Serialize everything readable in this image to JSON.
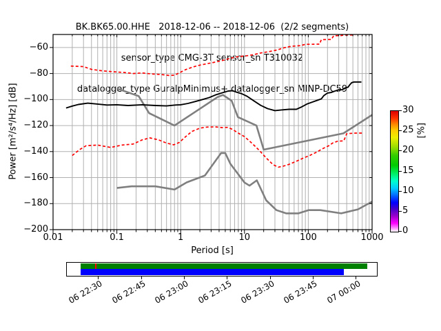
{
  "title": {
    "line1": "BK.BK65.00.HHE   2018-12-06 -- 2018-12-06  (2/2 segments)",
    "line2": "sensor_type CMG-3T sensor_sn T310032",
    "line3": "datalogger_type GuralpMinimus+ datalogger_sn MINP-DC59"
  },
  "chart_data": {
    "type": "line",
    "xscale": "log",
    "xlabel": "Period [s]",
    "ylabel": "Power [m²/s⁴/Hz] [dB]",
    "xlim": [
      0.01,
      1000
    ],
    "ylim": [
      -200,
      -50
    ],
    "xticks": [
      "0.01",
      "0.1",
      "1",
      "10",
      "100",
      "1000"
    ],
    "yticks": [
      -60,
      -80,
      -100,
      -120,
      -140,
      -160,
      -180,
      -200
    ],
    "grid": true,
    "grid_color": "#b0b0b0",
    "series": [
      {
        "name": "noise-model-low-NLNM",
        "color": "#7f7f7f",
        "width": 2.6,
        "dash": null,
        "data": [
          [
            0.1,
            -168
          ],
          [
            0.17,
            -166.7
          ],
          [
            0.4,
            -166.7
          ],
          [
            0.8,
            -169.2
          ],
          [
            1.24,
            -163.7
          ],
          [
            2.4,
            -158.4
          ],
          [
            4.3,
            -141.1
          ],
          [
            5,
            -141.1
          ],
          [
            6,
            -149.4
          ],
          [
            10,
            -163.8
          ],
          [
            12,
            -166.2
          ],
          [
            15.6,
            -162.1
          ],
          [
            21.9,
            -177.5
          ],
          [
            31.6,
            -185
          ],
          [
            45,
            -187.5
          ],
          [
            70,
            -187.5
          ],
          [
            101,
            -185
          ],
          [
            154,
            -185
          ],
          [
            328,
            -187.5
          ],
          [
            600,
            -184.4
          ],
          [
            1000,
            -178.5
          ]
        ]
      },
      {
        "name": "noise-model-high-NHNM",
        "color": "#7f7f7f",
        "width": 2.6,
        "dash": null,
        "data": [
          [
            0.1,
            -91.5
          ],
          [
            0.22,
            -97.4
          ],
          [
            0.32,
            -110.5
          ],
          [
            0.8,
            -120
          ],
          [
            3.8,
            -98.1
          ],
          [
            4.6,
            -96.5
          ],
          [
            6.3,
            -101
          ],
          [
            7.9,
            -113.5
          ],
          [
            15.4,
            -120
          ],
          [
            20,
            -138.5
          ],
          [
            354.8,
            -126
          ],
          [
            1000,
            -111.8
          ]
        ]
      },
      {
        "name": "psd-mode",
        "color": "#000000",
        "width": 1.9,
        "dash": null,
        "data": [
          [
            0.016,
            -106.5
          ],
          [
            0.02,
            -105
          ],
          [
            0.025,
            -103.8
          ],
          [
            0.035,
            -102.8
          ],
          [
            0.05,
            -103.5
          ],
          [
            0.07,
            -104.2
          ],
          [
            0.1,
            -104
          ],
          [
            0.15,
            -104.6
          ],
          [
            0.25,
            -104
          ],
          [
            0.4,
            -104.6
          ],
          [
            0.6,
            -104.9
          ],
          [
            0.8,
            -104.3
          ],
          [
            1,
            -104
          ],
          [
            1.3,
            -103
          ],
          [
            1.7,
            -101.5
          ],
          [
            2.2,
            -100
          ],
          [
            2.8,
            -98.5
          ],
          [
            3.5,
            -96.5
          ],
          [
            4.5,
            -94.8
          ],
          [
            5.5,
            -93.5
          ],
          [
            6.5,
            -93.2
          ],
          [
            7.5,
            -94.3
          ],
          [
            9,
            -95.5
          ],
          [
            11,
            -97.5
          ],
          [
            14,
            -101
          ],
          [
            18,
            -104.5
          ],
          [
            23,
            -107
          ],
          [
            30,
            -108.5
          ],
          [
            38,
            -108
          ],
          [
            50,
            -107.5
          ],
          [
            65,
            -107.5
          ],
          [
            80,
            -105.5
          ],
          [
            95,
            -103.5
          ],
          [
            115,
            -102
          ],
          [
            140,
            -100.5
          ],
          [
            160,
            -99.5
          ],
          [
            175,
            -97
          ],
          [
            200,
            -95
          ],
          [
            230,
            -94.5
          ],
          [
            260,
            -93.5
          ],
          [
            300,
            -92.5
          ],
          [
            340,
            -92.5
          ],
          [
            380,
            -91
          ],
          [
            420,
            -90.5
          ],
          [
            450,
            -88.5
          ],
          [
            480,
            -87
          ],
          [
            520,
            -86.5
          ],
          [
            680,
            -86.5
          ]
        ]
      },
      {
        "name": "percentile-high",
        "color": "#ff0000",
        "width": 1.7,
        "dash": "4 3",
        "data": [
          [
            0.019,
            -74.3
          ],
          [
            0.03,
            -74.7
          ],
          [
            0.04,
            -76.8
          ],
          [
            0.06,
            -78
          ],
          [
            0.09,
            -78.7
          ],
          [
            0.13,
            -79.2
          ],
          [
            0.18,
            -80
          ],
          [
            0.25,
            -79.6
          ],
          [
            0.35,
            -80.3
          ],
          [
            0.5,
            -80.8
          ],
          [
            0.65,
            -81.5
          ],
          [
            0.8,
            -81.3
          ],
          [
            0.95,
            -79.5
          ],
          [
            1.2,
            -77
          ],
          [
            1.6,
            -74.8
          ],
          [
            2.1,
            -73.3
          ],
          [
            2.7,
            -72.3
          ],
          [
            3.5,
            -71.2
          ],
          [
            4.5,
            -70
          ],
          [
            6,
            -68.3
          ],
          [
            8,
            -67
          ],
          [
            11,
            -66.3
          ],
          [
            14,
            -65.5
          ],
          [
            18,
            -64.2
          ],
          [
            24,
            -63.2
          ],
          [
            32,
            -62
          ],
          [
            42,
            -60.2
          ],
          [
            55,
            -59
          ],
          [
            75,
            -58.6
          ],
          [
            90,
            -57.6
          ],
          [
            150,
            -57.4
          ],
          [
            160,
            -54
          ],
          [
            230,
            -53.8
          ],
          [
            250,
            -51
          ],
          [
            330,
            -50.8
          ],
          [
            360,
            -50.4
          ],
          [
            540,
            -50.4
          ]
        ]
      },
      {
        "name": "percentile-low",
        "color": "#ff0000",
        "width": 1.7,
        "dash": "4 3",
        "data": [
          [
            0.02,
            -143
          ],
          [
            0.026,
            -138.5
          ],
          [
            0.033,
            -135.5
          ],
          [
            0.05,
            -135
          ],
          [
            0.08,
            -136.8
          ],
          [
            0.12,
            -135
          ],
          [
            0.18,
            -134.2
          ],
          [
            0.25,
            -131
          ],
          [
            0.33,
            -129.5
          ],
          [
            0.45,
            -131
          ],
          [
            0.6,
            -133.5
          ],
          [
            0.78,
            -134.8
          ],
          [
            0.95,
            -133
          ],
          [
            1.2,
            -128.5
          ],
          [
            1.5,
            -124.5
          ],
          [
            2,
            -122
          ],
          [
            2.6,
            -121.2
          ],
          [
            3.5,
            -121
          ],
          [
            4.5,
            -121.6
          ],
          [
            5.5,
            -121.4
          ],
          [
            6.5,
            -123
          ],
          [
            8,
            -125.8
          ],
          [
            10,
            -128.5
          ],
          [
            13,
            -133.5
          ],
          [
            17,
            -139
          ],
          [
            22,
            -145
          ],
          [
            28,
            -150
          ],
          [
            34,
            -152
          ],
          [
            42,
            -151
          ],
          [
            52,
            -149.5
          ],
          [
            68,
            -147
          ],
          [
            85,
            -144.8
          ],
          [
            105,
            -143
          ],
          [
            135,
            -140.5
          ],
          [
            165,
            -138
          ],
          [
            210,
            -135.5
          ],
          [
            240,
            -133.5
          ],
          [
            290,
            -132
          ],
          [
            360,
            -131.8
          ],
          [
            400,
            -126.2
          ],
          [
            550,
            -125.8
          ],
          [
            700,
            -125.8
          ]
        ]
      }
    ]
  },
  "colorbar": {
    "label": "[%]",
    "ticks": [
      0,
      5,
      10,
      15,
      20,
      25,
      30
    ],
    "gradient": [
      {
        "stop": 0,
        "color": "#ffffff"
      },
      {
        "stop": 3,
        "color": "#ff8bff"
      },
      {
        "stop": 7,
        "color": "#ff00ff"
      },
      {
        "stop": 13,
        "color": "#9900cc"
      },
      {
        "stop": 19,
        "color": "#4400cc"
      },
      {
        "stop": 24,
        "color": "#0000ff"
      },
      {
        "stop": 30,
        "color": "#0066ff"
      },
      {
        "stop": 36,
        "color": "#00ccff"
      },
      {
        "stop": 42,
        "color": "#00ffcc"
      },
      {
        "stop": 48,
        "color": "#00ee66"
      },
      {
        "stop": 55,
        "color": "#00cc00"
      },
      {
        "stop": 63,
        "color": "#33cc00"
      },
      {
        "stop": 70,
        "color": "#99dd00"
      },
      {
        "stop": 78,
        "color": "#eeee00"
      },
      {
        "stop": 84,
        "color": "#ffcc00"
      },
      {
        "stop": 89,
        "color": "#ff8800"
      },
      {
        "stop": 94,
        "color": "#ff3300"
      },
      {
        "stop": 100,
        "color": "#dd0000"
      }
    ]
  },
  "timeline": {
    "labels": [
      "06 22:30",
      "06 22:45",
      "06 23:00",
      "06 23:15",
      "06 23:30",
      "06 23:45",
      "07 00:00"
    ],
    "tick_x": [
      142,
      204.7,
      267,
      329.3,
      391.7,
      454,
      516.3
    ],
    "coverage_color": "#008000",
    "data_extent_color": "#0000ff",
    "gap_color": "#ff0000"
  }
}
